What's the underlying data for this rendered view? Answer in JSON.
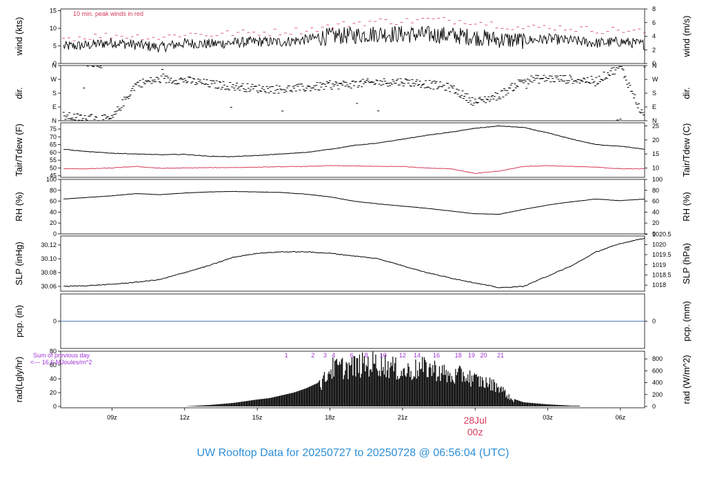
{
  "footer": {
    "text": "UW Rooftop Data for 20250727  to  20250728 @ 06:56:04  (UTC)"
  },
  "chart_data": {
    "type": "line",
    "x_range_hours_utc": [
      6.88,
      31.0
    ],
    "x_tick_hours": [
      9,
      12,
      15,
      18,
      21,
      24,
      27,
      30
    ],
    "x_tick_labels": [
      "09z",
      "12z",
      "15z",
      "18z",
      "21z",
      "",
      "03z",
      "06z"
    ],
    "date_marker": {
      "hour": 24,
      "label_top": "28Jul",
      "label_bottom": "00z",
      "color": "#d63a5a"
    },
    "panels": [
      {
        "id": "wind",
        "ylabel_left": "wind (kts)",
        "ylabel_right": "wind (m/s)",
        "ylim_left": [
          0,
          15.5
        ],
        "ticks_left": [
          0,
          5,
          10,
          15
        ],
        "ylim_right": [
          0,
          8
        ],
        "ticks_right": [
          0,
          2,
          4,
          6,
          8
        ],
        "annotation": "10 min. peak winds in red",
        "annotation_color": "#d63a5a",
        "series": [
          {
            "name": "wind speed",
            "color": "#000000",
            "x": [
              7,
              8,
              9,
              10,
              11,
              12,
              13,
              14,
              15,
              16,
              17,
              18,
              19,
              20,
              21,
              22,
              23,
              24,
              25,
              26,
              27,
              28,
              29,
              30,
              31
            ],
            "y": [
              4.8,
              5.2,
              6.0,
              5.3,
              4.6,
              5.8,
              5.5,
              5.9,
              6.2,
              6.1,
              6.8,
              7.8,
              8.0,
              8.5,
              8.3,
              8.2,
              8.0,
              7.5,
              6.8,
              6.5,
              7.0,
              6.5,
              5.8,
              6.2,
              5.4
            ]
          },
          {
            "name": "10 min. peak",
            "color": "#d63a5a",
            "x": [
              7,
              8,
              9,
              10,
              11,
              12,
              13,
              14,
              15,
              16,
              17,
              18,
              19,
              20,
              21,
              22,
              23,
              24,
              25,
              26,
              27,
              28,
              29,
              30,
              31
            ],
            "y": [
              7.2,
              7.6,
              8.0,
              7.8,
              7.3,
              8.5,
              8.2,
              8.6,
              8.8,
              9.0,
              9.5,
              10.5,
              11.5,
              12.0,
              12.0,
              12.5,
              12.2,
              12.0,
              11.0,
              10.0,
              10.5,
              10.0,
              9.5,
              9.5,
              9.0
            ]
          }
        ]
      },
      {
        "id": "dir",
        "ylabel_left": "dir.",
        "ylabel_right": "dir.",
        "ylim_left": [
          0,
          360
        ],
        "ticks_left": [
          0,
          90,
          180,
          270,
          360
        ],
        "tick_labels": [
          "N",
          "E",
          "S",
          "W",
          "N"
        ],
        "series": [
          {
            "name": "wind direction",
            "color": "#000000",
            "style": "points",
            "x": [
              7,
              8,
              9,
              10,
              11,
              12,
              13,
              14,
              15,
              16,
              17,
              18,
              19,
              20,
              21,
              22,
              23,
              24,
              25,
              26,
              27,
              28,
              29,
              30,
              31
            ],
            "y": [
              30,
              15,
              10,
              240,
              270,
              265,
              240,
              225,
              210,
              205,
              215,
              230,
              240,
              250,
              255,
              240,
              215,
              120,
              165,
              265,
              275,
              270,
              260,
              355,
              10
            ]
          }
        ]
      },
      {
        "id": "temp",
        "ylabel_left": "Tair/Tdew (F)",
        "ylabel_right": "Tair/Tdew (C)",
        "ylim_left": [
          44,
          79
        ],
        "ticks_left": [
          45,
          50,
          55,
          60,
          65,
          70,
          75
        ],
        "ylim_right": [
          6.667,
          26.111
        ],
        "ticks_right": [
          10,
          15,
          20,
          25
        ],
        "series": [
          {
            "name": "Tair",
            "color": "#000000",
            "x": [
              7,
              8,
              9,
              10,
              11,
              12,
              13,
              14,
              15,
              16,
              17,
              18,
              19,
              20,
              21,
              22,
              23,
              24,
              25,
              26,
              27,
              28,
              29,
              30,
              31
            ],
            "y": [
              62,
              60.5,
              59.5,
              59,
              58.5,
              58.8,
              57.5,
              57.3,
              58,
              59,
              60,
              62,
              64.5,
              66,
              68.5,
              71,
              73,
              75.5,
              77,
              76,
              72.5,
              68.5,
              65,
              64,
              62
            ]
          },
          {
            "name": "Tdew",
            "color": "#d63a5a",
            "x": [
              7,
              8,
              9,
              10,
              11,
              12,
              13,
              14,
              15,
              16,
              17,
              18,
              19,
              20,
              21,
              22,
              23,
              24,
              25,
              26,
              27,
              28,
              29,
              30,
              31
            ],
            "y": [
              49.5,
              49.5,
              50,
              51,
              49.8,
              50,
              50.2,
              50.3,
              50.5,
              50.8,
              51,
              51.5,
              51.3,
              51,
              51,
              50,
              49.5,
              46.5,
              48,
              51,
              51.5,
              51,
              50.5,
              49.5,
              49.5
            ]
          }
        ]
      },
      {
        "id": "rh",
        "ylabel_left": "RH (%)",
        "ylabel_right": "RH (%)",
        "ylim_left": [
          0,
          100
        ],
        "ticks_left": [
          0,
          20,
          40,
          60,
          80,
          100
        ],
        "ylim_right": [
          0,
          100
        ],
        "ticks_right": [
          0,
          20,
          40,
          60,
          80,
          100
        ],
        "series": [
          {
            "name": "RH",
            "color": "#000000",
            "x": [
              7,
              8,
              9,
              10,
              11,
              12,
              13,
              14,
              15,
              16,
              17,
              18,
              19,
              20,
              21,
              22,
              23,
              24,
              25,
              26,
              27,
              28,
              29,
              30,
              31
            ],
            "y": [
              64,
              67,
              70,
              74,
              72,
              75,
              77,
              78,
              77,
              76,
              73,
              68,
              60,
              55,
              51,
              47,
              42,
              37,
              36,
              45,
              53,
              59,
              64,
              61,
              64
            ]
          }
        ]
      },
      {
        "id": "slp",
        "ylabel_left": "SLP (inHg)",
        "ylabel_right": "SLP (hPa)",
        "ylim_left": [
          30.053,
          30.133
        ],
        "ticks_left": [
          30.06,
          30.08,
          30.1,
          30.12
        ],
        "tick_labels_left": [
          "30.06",
          "30.08",
          "30.10",
          "30.12"
        ],
        "ylim_right": [
          1017.7,
          1020.42
        ],
        "ticks_right": [
          1018,
          1018.5,
          1019,
          1019.5,
          1020,
          1020.5
        ],
        "tick_labels_right": [
          "1018",
          "1018.5",
          "1019",
          "1019.5",
          "1020",
          "1020.5"
        ],
        "series": [
          {
            "name": "SLP",
            "color": "#000000",
            "x": [
              7,
              8,
              9,
              10,
              11,
              12,
              13,
              14,
              15,
              16,
              17,
              18,
              19,
              20,
              21,
              22,
              23,
              24,
              25,
              26,
              27,
              28,
              29,
              30,
              31
            ],
            "y": [
              30.06,
              30.061,
              30.063,
              30.066,
              30.07,
              30.08,
              30.09,
              30.102,
              30.108,
              30.11,
              30.11,
              30.108,
              30.104,
              30.1,
              30.09,
              30.08,
              30.072,
              30.065,
              30.058,
              30.06,
              30.075,
              30.09,
              30.11,
              30.122,
              30.13
            ]
          }
        ]
      },
      {
        "id": "pcp",
        "ylabel_left": "pcp. (in)",
        "ylabel_right": "pcp. (mm)",
        "ylim_left": [
          -0.08,
          0.08
        ],
        "ticks_left": [
          0
        ],
        "tick_labels_left": [
          "0"
        ],
        "ticks_right": [
          0
        ],
        "tick_labels_right": [
          "0"
        ],
        "series": [
          {
            "name": "precipitation",
            "color": "#4a7bc0",
            "x": [
              6.9,
              31
            ],
            "y": [
              0,
              0
            ]
          }
        ]
      },
      {
        "id": "rad",
        "ylabel_left": "rad(Lgly/hr)",
        "ylabel_right": "rad (W/m^2)",
        "ylim_left": [
          -2,
          80
        ],
        "ticks_left": [
          0,
          20,
          40,
          60,
          80
        ],
        "ylim_right": [
          -23,
          930
        ],
        "ticks_right": [
          0,
          200,
          400,
          600,
          800
        ],
        "annotation_lines": [
          "Sum of previous day",
          "<--- 16.6 MJoules/m^2"
        ],
        "annotation_color": "#a033d6",
        "hour_labels": [
          "1",
          "2",
          "3",
          "4",
          "6",
          "8",
          "10",
          "12",
          "14",
          "16",
          "18",
          "19",
          "20",
          "21"
        ],
        "hour_label_x": [
          16.2,
          17.3,
          17.8,
          18.15,
          18.9,
          19.5,
          20.2,
          21.0,
          21.6,
          22.4,
          23.3,
          23.85,
          24.35,
          25.05
        ],
        "hour_label_color": "#a033d6",
        "series": [
          {
            "name": "solar radiation",
            "color": "#000000",
            "style": "bars",
            "x": [
              12,
              13,
              14,
              15,
              15.5,
              16,
              16.5,
              17,
              17.5,
              17.8,
              18,
              18.5,
              19,
              19.5,
              20,
              20.5,
              21,
              21.5,
              22,
              22.5,
              23,
              23.5,
              24,
              24.5,
              25,
              25.5,
              26,
              27,
              28
            ],
            "y": [
              0,
              2,
              5,
              10,
              12,
              16,
              20,
              26,
              34,
              50,
              68,
              70,
              72,
              76,
              78,
              72,
              62,
              66,
              70,
              65,
              52,
              58,
              48,
              42,
              36,
              12,
              6,
              3,
              1
            ]
          }
        ]
      }
    ]
  }
}
